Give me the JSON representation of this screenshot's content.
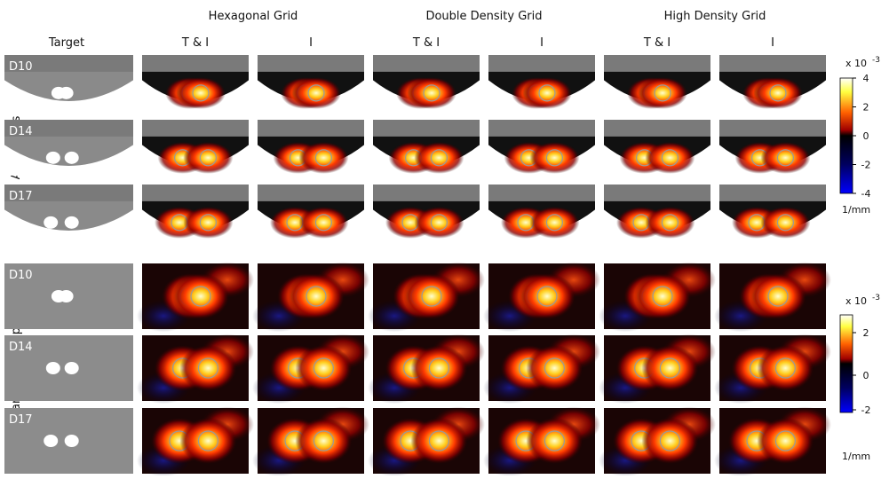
{
  "groups": [
    "Hexagonal Grid",
    "Double Density Grid",
    "High Density Grid"
  ],
  "columns": [
    "Target",
    "T & I",
    "I",
    "T & I",
    "I",
    "T & I",
    "I"
  ],
  "sections": [
    {
      "label": "Axial slices",
      "rows": [
        "D10",
        "D14",
        "D17"
      ]
    },
    {
      "label": "Tangential maps",
      "rows": [
        "D10",
        "D14",
        "D17"
      ]
    }
  ],
  "colorbars": [
    {
      "scale": "x 10",
      "exponent": "-3",
      "ticks": [
        "4",
        "2",
        "0",
        "-2",
        "-4"
      ],
      "unit": "1/mm"
    },
    {
      "scale": "x 10",
      "exponent": "-3",
      "ticks": [
        "2",
        "0",
        "-2"
      ],
      "unit": "1/mm"
    }
  ]
}
